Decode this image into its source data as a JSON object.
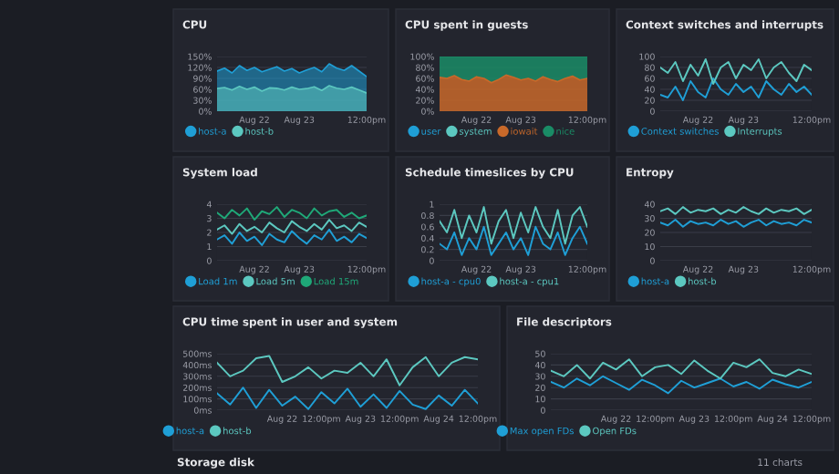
{
  "chart_data": [
    {
      "type": "area",
      "title": "CPU",
      "categories": [
        null,
        null,
        null,
        null,
        null,
        "Aug 22",
        null,
        null,
        null,
        null,
        null,
        "Aug 23",
        null,
        null,
        null,
        null,
        null,
        null,
        null,
        null,
        "12:00pm"
      ],
      "ylim": [
        0,
        150
      ],
      "yticks": [
        {
          "value": 0,
          "label": "0%"
        },
        {
          "value": 30,
          "label": "30%"
        },
        {
          "value": 60,
          "label": "60%"
        },
        {
          "value": 90,
          "label": "90%"
        },
        {
          "value": 120,
          "label": "120%"
        },
        {
          "value": 150,
          "label": "150%"
        }
      ],
      "grid": "y",
      "legend": "bottom",
      "series": [
        {
          "name": "host-a",
          "color": "#1f9fd6",
          "values": [
            110,
            118,
            105,
            125,
            112,
            120,
            108,
            115,
            122,
            110,
            117,
            105,
            113,
            120,
            108,
            130,
            118,
            112,
            125,
            110,
            95
          ]
        },
        {
          "name": "host-b",
          "color": "#5cc8c0",
          "values": [
            62,
            65,
            58,
            68,
            60,
            66,
            55,
            64,
            63,
            58,
            66,
            60,
            62,
            67,
            57,
            70,
            63,
            60,
            66,
            58,
            50
          ]
        }
      ]
    },
    {
      "type": "area",
      "title": "CPU spent in guests",
      "stacked": true,
      "categories": [
        null,
        null,
        null,
        null,
        null,
        "Aug 22",
        null,
        null,
        null,
        null,
        null,
        "Aug 23",
        null,
        null,
        null,
        null,
        null,
        null,
        null,
        null,
        "12:00pm"
      ],
      "ylim": [
        0,
        100
      ],
      "yticks": [
        {
          "value": 0,
          "label": "0%"
        },
        {
          "value": 20,
          "label": "20%"
        },
        {
          "value": 40,
          "label": "40%"
        },
        {
          "value": 60,
          "label": "60%"
        },
        {
          "value": 80,
          "label": "80%"
        },
        {
          "value": 100,
          "label": "100%"
        }
      ],
      "grid": "y",
      "legend": "bottom",
      "series": [
        {
          "name": "user",
          "color": "#1f9fd6",
          "values": [
            null,
            null,
            null,
            null,
            null,
            null,
            null,
            null,
            null,
            null,
            null,
            null,
            null,
            null,
            null,
            null,
            null,
            null,
            null,
            null,
            null
          ]
        },
        {
          "name": "system",
          "color": "#5cc8c0",
          "values": [
            null,
            null,
            null,
            null,
            null,
            null,
            null,
            null,
            null,
            null,
            null,
            null,
            null,
            null,
            null,
            null,
            null,
            null,
            null,
            null,
            null
          ]
        },
        {
          "name": "iowait",
          "color": "#c8692a",
          "values": [
            62,
            60,
            65,
            58,
            55,
            63,
            60,
            52,
            58,
            66,
            62,
            57,
            60,
            55,
            63,
            58,
            54,
            60,
            64,
            57,
            60
          ]
        },
        {
          "name": "nice",
          "color": "#1a8c66",
          "values": [
            38,
            40,
            35,
            42,
            45,
            37,
            40,
            48,
            42,
            34,
            38,
            43,
            40,
            45,
            37,
            42,
            46,
            40,
            36,
            43,
            40
          ]
        }
      ]
    },
    {
      "type": "line",
      "title": "Context switches and interrupts",
      "categories": [
        null,
        null,
        null,
        null,
        null,
        "Aug 22",
        null,
        null,
        null,
        null,
        null,
        "Aug 23",
        null,
        null,
        null,
        null,
        null,
        null,
        null,
        null,
        "12:00pm"
      ],
      "ylim": [
        0,
        100
      ],
      "yticks": [
        0,
        20,
        40,
        60,
        80,
        100
      ],
      "grid": "y",
      "legend": "bottom",
      "series": [
        {
          "name": "Context switches",
          "color": "#1f9fd6",
          "values": [
            30,
            25,
            45,
            20,
            55,
            35,
            25,
            60,
            40,
            30,
            50,
            35,
            45,
            25,
            55,
            40,
            30,
            50,
            35,
            45,
            30
          ]
        },
        {
          "name": "Interrupts",
          "color": "#5cc8c0",
          "values": [
            80,
            70,
            90,
            55,
            85,
            65,
            95,
            50,
            80,
            90,
            60,
            85,
            75,
            95,
            60,
            80,
            90,
            70,
            55,
            85,
            75
          ]
        }
      ]
    },
    {
      "type": "line",
      "title": "System load",
      "categories": [
        null,
        null,
        null,
        null,
        null,
        "Aug 22",
        null,
        null,
        null,
        null,
        null,
        "Aug 23",
        null,
        null,
        null,
        null,
        null,
        null,
        null,
        null,
        "12:00pm"
      ],
      "ylim": [
        0,
        4
      ],
      "yticks": [
        0,
        1,
        2,
        3,
        4
      ],
      "grid": "y",
      "legend": "bottom",
      "series": [
        {
          "name": "Load 1m",
          "color": "#1f9fd6",
          "values": [
            1.5,
            1.8,
            1.2,
            2.0,
            1.4,
            1.7,
            1.1,
            1.9,
            1.5,
            1.3,
            2.1,
            1.6,
            1.2,
            1.8,
            1.5,
            2.2,
            1.4,
            1.7,
            1.3,
            1.9,
            1.6
          ]
        },
        {
          "name": "Load 5m",
          "color": "#5cc8c0",
          "values": [
            2.2,
            2.5,
            1.9,
            2.6,
            2.1,
            2.4,
            2.0,
            2.7,
            2.3,
            2.0,
            2.8,
            2.4,
            2.1,
            2.6,
            2.2,
            2.9,
            2.3,
            2.5,
            2.1,
            2.7,
            2.4
          ]
        },
        {
          "name": "Load 15m",
          "color": "#1fa878",
          "values": [
            3.4,
            3.0,
            3.6,
            3.2,
            3.7,
            2.9,
            3.5,
            3.3,
            3.8,
            3.1,
            3.6,
            3.4,
            3.0,
            3.7,
            3.2,
            3.5,
            3.6,
            3.1,
            3.4,
            3.0,
            3.2
          ]
        }
      ]
    },
    {
      "type": "line",
      "title": "Schedule timeslices by CPU",
      "categories": [
        null,
        null,
        null,
        null,
        null,
        "Aug 22",
        null,
        null,
        null,
        null,
        null,
        "Aug 23",
        null,
        null,
        null,
        null,
        null,
        null,
        null,
        null,
        "12:00pm"
      ],
      "ylim": [
        0,
        1
      ],
      "yticks": [
        0,
        0.2,
        0.4,
        0.6,
        0.8,
        1
      ],
      "grid": "y",
      "legend": "bottom",
      "series": [
        {
          "name": "host-a - cpu0",
          "color": "#1f9fd6",
          "values": [
            0.3,
            0.2,
            0.5,
            0.1,
            0.4,
            0.2,
            0.6,
            0.1,
            0.3,
            0.5,
            0.2,
            0.4,
            0.1,
            0.6,
            0.3,
            0.2,
            0.5,
            0.1,
            0.4,
            0.6,
            0.3
          ]
        },
        {
          "name": "host-a - cpu1",
          "color": "#5cc8c0",
          "values": [
            0.7,
            0.5,
            0.9,
            0.4,
            0.8,
            0.5,
            0.95,
            0.3,
            0.7,
            0.9,
            0.4,
            0.85,
            0.5,
            0.95,
            0.6,
            0.4,
            0.9,
            0.3,
            0.8,
            0.95,
            0.6
          ]
        }
      ]
    },
    {
      "type": "line",
      "title": "Entropy",
      "categories": [
        null,
        null,
        null,
        null,
        null,
        "Aug 22",
        null,
        null,
        null,
        null,
        null,
        "Aug 23",
        null,
        null,
        null,
        null,
        null,
        null,
        null,
        null,
        "12:00pm"
      ],
      "ylim": [
        0,
        40
      ],
      "yticks": [
        0,
        10,
        20,
        30,
        40
      ],
      "grid": "y",
      "legend": "bottom",
      "series": [
        {
          "name": "host-a",
          "color": "#1f9fd6",
          "values": [
            27,
            25,
            29,
            24,
            28,
            26,
            27,
            25,
            29,
            26,
            28,
            24,
            27,
            29,
            25,
            28,
            26,
            27,
            25,
            29,
            27
          ]
        },
        {
          "name": "host-b",
          "color": "#5cc8c0",
          "values": [
            35,
            37,
            33,
            38,
            34,
            36,
            35,
            37,
            33,
            36,
            34,
            38,
            35,
            33,
            37,
            34,
            36,
            35,
            37,
            33,
            36
          ]
        }
      ]
    },
    {
      "type": "line",
      "title": "CPU time spent in user and system",
      "categories": [
        null,
        null,
        null,
        null,
        null,
        "Aug 22",
        null,
        null,
        "12:00pm",
        null,
        null,
        "Aug 23",
        null,
        null,
        "12:00pm",
        null,
        null,
        "Aug 24",
        null,
        null,
        "12:00pm"
      ],
      "ylim": [
        0,
        500
      ],
      "yticks": [
        {
          "value": 0,
          "label": "0ms"
        },
        {
          "value": 100,
          "label": "100ms"
        },
        {
          "value": 200,
          "label": "200ms"
        },
        {
          "value": 300,
          "label": "300ms"
        },
        {
          "value": 400,
          "label": "400ms"
        },
        {
          "value": 500,
          "label": "500ms"
        }
      ],
      "grid": "y",
      "legend": "bottom",
      "series": [
        {
          "name": "host-a",
          "color": "#1f9fd6",
          "values": [
            150,
            50,
            200,
            20,
            180,
            40,
            120,
            10,
            160,
            60,
            190,
            30,
            140,
            20,
            170,
            50,
            10,
            130,
            40,
            180,
            60
          ]
        },
        {
          "name": "host-b",
          "color": "#5cc8c0",
          "values": [
            420,
            300,
            350,
            460,
            480,
            250,
            300,
            380,
            280,
            350,
            330,
            420,
            300,
            450,
            220,
            380,
            470,
            300,
            420,
            470,
            450
          ]
        }
      ]
    },
    {
      "type": "line",
      "title": "File descriptors",
      "categories": [
        null,
        null,
        null,
        null,
        null,
        "Aug 22",
        null,
        null,
        "12:00pm",
        null,
        null,
        "Aug 23",
        null,
        null,
        "12:00pm",
        null,
        null,
        "Aug 24",
        null,
        null,
        "12:00pm"
      ],
      "ylim": [
        0,
        50
      ],
      "yticks": [
        0,
        10,
        20,
        30,
        40,
        50
      ],
      "grid": "y",
      "legend": "bottom",
      "series": [
        {
          "name": "Max open FDs",
          "color": "#1f9fd6",
          "values": [
            25,
            20,
            28,
            22,
            30,
            24,
            18,
            27,
            22,
            15,
            26,
            20,
            24,
            28,
            21,
            25,
            19,
            27,
            23,
            20,
            25
          ]
        },
        {
          "name": "Open FDs",
          "color": "#5cc8c0",
          "values": [
            35,
            30,
            40,
            28,
            42,
            36,
            45,
            30,
            38,
            40,
            32,
            44,
            35,
            28,
            42,
            38,
            45,
            33,
            30,
            36,
            32
          ]
        }
      ]
    },
    {
      "type": "other",
      "annotations": [
        "Storage disk",
        "11 charts"
      ]
    }
  ]
}
